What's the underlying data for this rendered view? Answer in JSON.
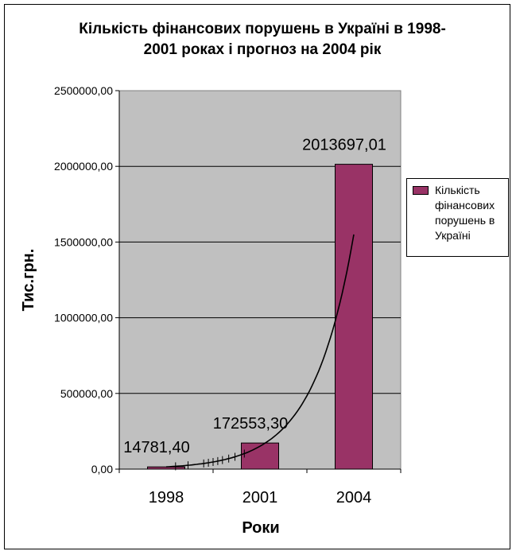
{
  "chart_data": {
    "type": "bar",
    "title_lines": [
      "Кількість фінансових порушень в Україні в 1998-",
      "2001 роках і прогноз на 2004 рік"
    ],
    "xlabel": "Роки",
    "ylabel": "Тис.грн.",
    "categories": [
      "1998",
      "2001",
      "2004"
    ],
    "series": [
      {
        "name": "Кількість фінансових порушень в Україні",
        "values": [
          14781.4,
          172553.3,
          2013697.01
        ],
        "data_labels": [
          "14781,40",
          "172553,30",
          "2013697,01"
        ],
        "color": "#993366"
      }
    ],
    "yticks": [
      {
        "value": 0,
        "label": "0,00"
      },
      {
        "value": 500000,
        "label": "500000,00"
      },
      {
        "value": 1000000,
        "label": "1000000,00"
      },
      {
        "value": 1500000,
        "label": "1500000,00"
      },
      {
        "value": 2000000,
        "label": "2000000,00"
      },
      {
        "value": 2500000,
        "label": "2500000,00"
      }
    ],
    "ylim": [
      0,
      2500000
    ],
    "grid": true,
    "plot_background": "#c0c0c0",
    "trendline": {
      "type": "exponential",
      "x": [
        1998,
        2004
      ],
      "y": [
        14781.4,
        1550000
      ]
    },
    "legend_position": "right"
  }
}
